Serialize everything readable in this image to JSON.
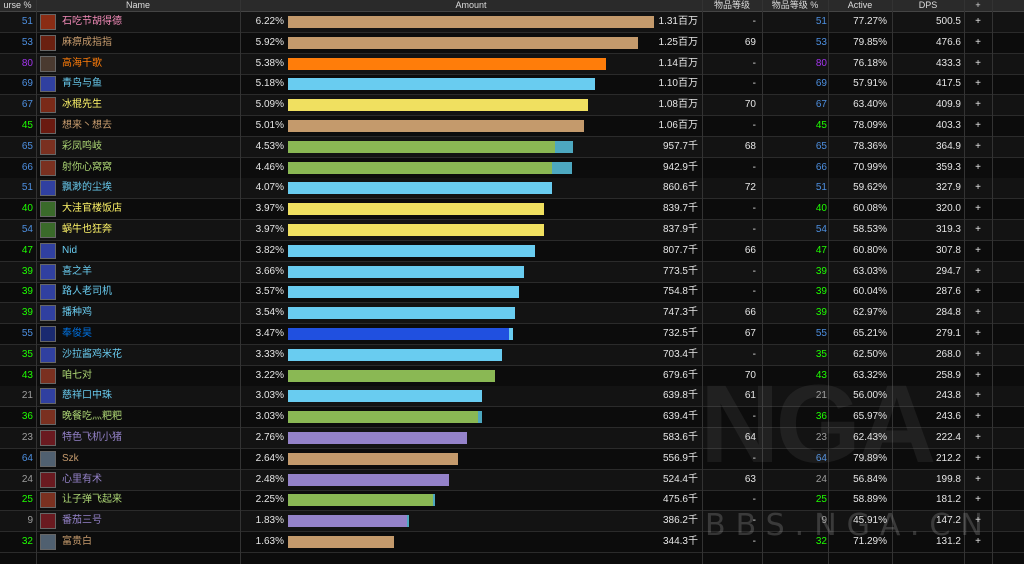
{
  "columns": [
    "urse %",
    "Name",
    "Amount",
    "物品等级",
    "物品等级 %",
    "Active",
    "DPS",
    "+"
  ],
  "rows": [
    {
      "rank": "51",
      "rank_color": "#4d8fe0",
      "name": "石吃节胡得德",
      "name_color": "#f48cba",
      "pct": "6.22%",
      "amount": "1.31百万",
      "frac": 1.0,
      "frac2": 0,
      "bar": "#c49a6c",
      "bar2": "#c49a6c",
      "ilvl": "-",
      "ilvl_rank": "51",
      "active": "77.27%",
      "dps": "500.5",
      "icon": "#8a2c14"
    },
    {
      "rank": "53",
      "rank_color": "#4d8fe0",
      "name": "麻痹成指指",
      "name_color": "#c69b6d",
      "pct": "5.92%",
      "amount": "1.25百万",
      "frac": 0.955,
      "frac2": 0,
      "bar": "#c49a6c",
      "bar2": "#c49a6c",
      "ilvl": "69",
      "ilvl_rank": "53",
      "active": "79.85%",
      "dps": "476.6",
      "icon": "#6a2010"
    },
    {
      "rank": "80",
      "rank_color": "#a335ee",
      "name": "高海千歌",
      "name_color": "#ff7d0a",
      "pct": "5.38%",
      "amount": "1.14百万",
      "frac": 0.87,
      "frac2": 0,
      "bar": "#ff7d0a",
      "bar2": "#ff7d0a",
      "ilvl": "-",
      "ilvl_rank": "80",
      "active": "76.18%",
      "dps": "433.3",
      "icon": "#4a3a30"
    },
    {
      "rank": "69",
      "rank_color": "#4d8fe0",
      "name": "青鸟与鱼",
      "name_color": "#69ccf0",
      "pct": "5.18%",
      "amount": "1.10百万",
      "frac": 0.84,
      "frac2": 0,
      "bar": "#69ccf0",
      "bar2": "#69ccf0",
      "ilvl": "-",
      "ilvl_rank": "69",
      "active": "57.91%",
      "dps": "417.5",
      "icon": "#3040a0"
    },
    {
      "rank": "67",
      "rank_color": "#4d8fe0",
      "name": "冰棍先生",
      "name_color": "#fff569",
      "pct": "5.09%",
      "amount": "1.08百万",
      "frac": 0.82,
      "frac2": 0,
      "bar": "#f0e060",
      "bar2": "#f0e060",
      "ilvl": "70",
      "ilvl_rank": "67",
      "active": "63.40%",
      "dps": "409.9",
      "icon": "#7a2a18"
    },
    {
      "rank": "45",
      "rank_color": "#1eff00",
      "name": "想来丶想去",
      "name_color": "#c69b6d",
      "pct": "5.01%",
      "amount": "1.06百万",
      "frac": 0.81,
      "frac2": 0,
      "bar": "#c49a6c",
      "bar2": "#c49a6c",
      "ilvl": "-",
      "ilvl_rank": "45",
      "active": "78.09%",
      "dps": "403.3",
      "icon": "#6a1a10"
    },
    {
      "rank": "65",
      "rank_color": "#4d8fe0",
      "name": "彩凤鸣岐",
      "name_color": "#abd473",
      "pct": "4.53%",
      "amount": "957.7千",
      "frac": 0.73,
      "frac2": 0.05,
      "bar": "#8ab854",
      "bar2": "#4da8c0",
      "ilvl": "68",
      "ilvl_rank": "65",
      "active": "78.36%",
      "dps": "364.9",
      "icon": "#7a3020"
    },
    {
      "rank": "66",
      "rank_color": "#4d8fe0",
      "name": "射你心窝窝",
      "name_color": "#abd473",
      "pct": "4.46%",
      "amount": "942.9千",
      "frac": 0.72,
      "frac2": 0.055,
      "bar": "#8ab854",
      "bar2": "#4da8c0",
      "ilvl": "-",
      "ilvl_rank": "66",
      "active": "70.99%",
      "dps": "359.3",
      "icon": "#7a3020"
    },
    {
      "rank": "51",
      "rank_color": "#4d8fe0",
      "name": "飘渺的尘埃",
      "name_color": "#69ccf0",
      "pct": "4.07%",
      "amount": "860.6千",
      "frac": 0.72,
      "frac2": 0,
      "bar": "#69ccf0",
      "bar2": "#69ccf0",
      "ilvl": "72",
      "ilvl_rank": "51",
      "active": "59.62%",
      "dps": "327.9",
      "icon": "#3040a0"
    },
    {
      "rank": "40",
      "rank_color": "#1eff00",
      "name": "大洼官楼饭店",
      "name_color": "#fff569",
      "pct": "3.97%",
      "amount": "839.7千",
      "frac": 0.7,
      "frac2": 0,
      "bar": "#f0e060",
      "bar2": "#f0e060",
      "ilvl": "-",
      "ilvl_rank": "40",
      "active": "60.08%",
      "dps": "320.0",
      "icon": "#3a6a2a"
    },
    {
      "rank": "54",
      "rank_color": "#4d8fe0",
      "name": "蜗牛也狂奔",
      "name_color": "#fff569",
      "pct": "3.97%",
      "amount": "837.9千",
      "frac": 0.7,
      "frac2": 0,
      "bar": "#f0e060",
      "bar2": "#f0e060",
      "ilvl": "-",
      "ilvl_rank": "54",
      "active": "58.53%",
      "dps": "319.3",
      "icon": "#3a6a2a"
    },
    {
      "rank": "47",
      "rank_color": "#1eff00",
      "name": "Nid",
      "name_color": "#69ccf0",
      "pct": "3.82%",
      "amount": "807.7千",
      "frac": 0.675,
      "frac2": 0,
      "bar": "#69ccf0",
      "bar2": "#69ccf0",
      "ilvl": "66",
      "ilvl_rank": "47",
      "active": "60.80%",
      "dps": "307.8",
      "icon": "#3040a0"
    },
    {
      "rank": "39",
      "rank_color": "#1eff00",
      "name": "喜之羊",
      "name_color": "#69ccf0",
      "pct": "3.66%",
      "amount": "773.5千",
      "frac": 0.645,
      "frac2": 0,
      "bar": "#69ccf0",
      "bar2": "#69ccf0",
      "ilvl": "-",
      "ilvl_rank": "39",
      "active": "63.03%",
      "dps": "294.7",
      "icon": "#3040a0"
    },
    {
      "rank": "39",
      "rank_color": "#1eff00",
      "name": "路人老司机",
      "name_color": "#69ccf0",
      "pct": "3.57%",
      "amount": "754.8千",
      "frac": 0.63,
      "frac2": 0,
      "bar": "#69ccf0",
      "bar2": "#69ccf0",
      "ilvl": "-",
      "ilvl_rank": "39",
      "active": "60.04%",
      "dps": "287.6",
      "icon": "#3040a0"
    },
    {
      "rank": "39",
      "rank_color": "#1eff00",
      "name": "播种鸡",
      "name_color": "#69ccf0",
      "pct": "3.54%",
      "amount": "747.3千",
      "frac": 0.62,
      "frac2": 0,
      "bar": "#69ccf0",
      "bar2": "#69ccf0",
      "ilvl": "66",
      "ilvl_rank": "39",
      "active": "62.97%",
      "dps": "284.8",
      "icon": "#3040a0"
    },
    {
      "rank": "55",
      "rank_color": "#4d8fe0",
      "name": "奉俊昊",
      "name_color": "#0070de",
      "pct": "3.47%",
      "amount": "732.5千",
      "frac": 0.605,
      "frac2": 0.01,
      "bar": "#2050e0",
      "bar2": "#69ccf0",
      "ilvl": "67",
      "ilvl_rank": "55",
      "active": "65.21%",
      "dps": "279.1",
      "icon": "#1a2a70"
    },
    {
      "rank": "35",
      "rank_color": "#1eff00",
      "name": "沙拉酱鸡米花",
      "name_color": "#69ccf0",
      "pct": "3.33%",
      "amount": "703.4千",
      "frac": 0.585,
      "frac2": 0,
      "bar": "#69ccf0",
      "bar2": "#69ccf0",
      "ilvl": "-",
      "ilvl_rank": "35",
      "active": "62.50%",
      "dps": "268.0",
      "icon": "#3040a0"
    },
    {
      "rank": "43",
      "rank_color": "#1eff00",
      "name": "咱七对",
      "name_color": "#abd473",
      "pct": "3.22%",
      "amount": "679.6千",
      "frac": 0.565,
      "frac2": 0,
      "bar": "#8ab854",
      "bar2": "#8ab854",
      "ilvl": "70",
      "ilvl_rank": "43",
      "active": "63.32%",
      "dps": "258.9",
      "icon": "#7a3020"
    },
    {
      "rank": "21",
      "rank_color": "#9d9d9d",
      "name": "慈祥口中珠",
      "name_color": "#69ccf0",
      "pct": "3.03%",
      "amount": "639.8千",
      "frac": 0.53,
      "frac2": 0,
      "bar": "#69ccf0",
      "bar2": "#69ccf0",
      "ilvl": "61",
      "ilvl_rank": "21",
      "active": "56.00%",
      "dps": "243.8",
      "icon": "#3040a0"
    },
    {
      "rank": "36",
      "rank_color": "#1eff00",
      "name": "晚餐吃灬粑粑",
      "name_color": "#abd473",
      "pct": "3.03%",
      "amount": "639.4千",
      "frac": 0.52,
      "frac2": 0.01,
      "bar": "#8ab854",
      "bar2": "#4da8c0",
      "ilvl": "-",
      "ilvl_rank": "36",
      "active": "65.97%",
      "dps": "243.6",
      "icon": "#7a3020"
    },
    {
      "rank": "23",
      "rank_color": "#9d9d9d",
      "name": "特色飞机小猪",
      "name_color": "#9482c9",
      "pct": "2.76%",
      "amount": "583.6千",
      "frac": 0.49,
      "frac2": 0,
      "bar": "#9482c9",
      "bar2": "#9482c9",
      "ilvl": "64",
      "ilvl_rank": "23",
      "active": "62.43%",
      "dps": "222.4",
      "icon": "#6a1a20"
    },
    {
      "rank": "64",
      "rank_color": "#4d8fe0",
      "name": "Szk",
      "name_color": "#c69b6d",
      "pct": "2.64%",
      "amount": "556.9千",
      "frac": 0.465,
      "frac2": 0,
      "bar": "#c49a6c",
      "bar2": "#c49a6c",
      "ilvl": "-",
      "ilvl_rank": "64",
      "active": "79.89%",
      "dps": "212.2",
      "icon": "#506070"
    },
    {
      "rank": "24",
      "rank_color": "#9d9d9d",
      "name": "心里有术",
      "name_color": "#9482c9",
      "pct": "2.48%",
      "amount": "524.4千",
      "frac": 0.44,
      "frac2": 0,
      "bar": "#9482c9",
      "bar2": "#9482c9",
      "ilvl": "63",
      "ilvl_rank": "24",
      "active": "56.84%",
      "dps": "199.8",
      "icon": "#6a1a20"
    },
    {
      "rank": "25",
      "rank_color": "#1eff00",
      "name": "让子弹飞起来",
      "name_color": "#abd473",
      "pct": "2.25%",
      "amount": "475.6千",
      "frac": 0.395,
      "frac2": 0.005,
      "bar": "#8ab854",
      "bar2": "#4da8c0",
      "ilvl": "-",
      "ilvl_rank": "25",
      "active": "58.89%",
      "dps": "181.2",
      "icon": "#7a3020"
    },
    {
      "rank": "9",
      "rank_color": "#9d9d9d",
      "name": "番茄三号",
      "name_color": "#9482c9",
      "pct": "1.83%",
      "amount": "386.2千",
      "frac": 0.325,
      "frac2": 0.005,
      "bar": "#9482c9",
      "bar2": "#4da8c0",
      "ilvl": "-",
      "ilvl_rank": "9",
      "active": "45.91%",
      "dps": "147.2",
      "icon": "#6a1a20"
    },
    {
      "rank": "32",
      "rank_color": "#1eff00",
      "name": "富贵白",
      "name_color": "#c69b6d",
      "pct": "1.63%",
      "amount": "344.3千",
      "frac": 0.29,
      "frac2": 0,
      "bar": "#c49a6c",
      "bar2": "#c49a6c",
      "ilvl": "-",
      "ilvl_rank": "32",
      "active": "71.29%",
      "dps": "131.2",
      "icon": "#506070"
    }
  ],
  "watermark": {
    "logo": "NGA",
    "site": "BBS.NGA.CN"
  },
  "plus_label": "+"
}
